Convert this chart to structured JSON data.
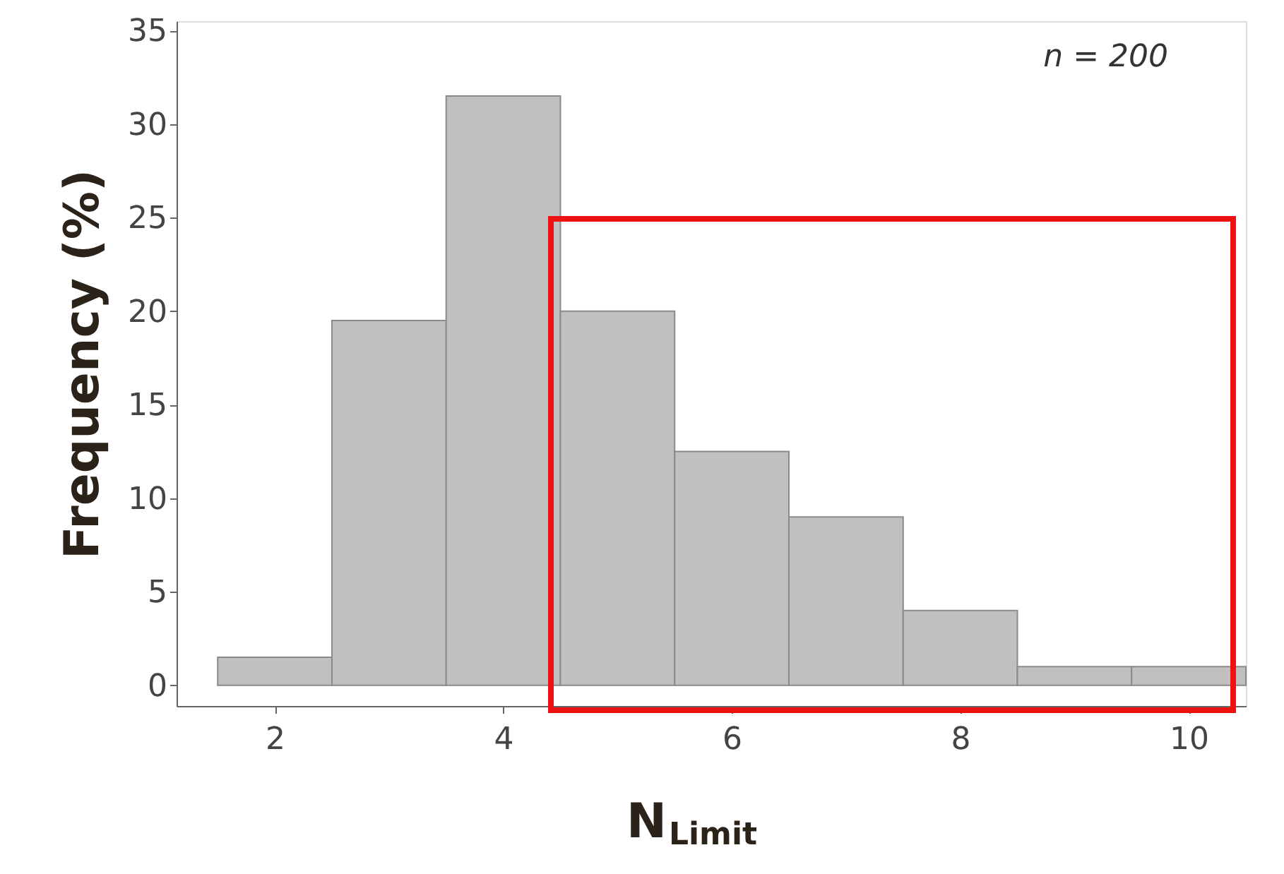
{
  "chart_data": {
    "type": "histogram",
    "bins": [
      1.5,
      2.5,
      3.5,
      4.5,
      5.5,
      6.5,
      7.5,
      8.5,
      9.5,
      10.5
    ],
    "values": [
      1.5,
      19.5,
      31.5,
      20,
      12.5,
      9,
      4,
      1,
      1
    ],
    "color": "#c0c0c0",
    "xlabel": "N$_{Limit}$",
    "ylabel": "Frequency (%)",
    "annotations": [
      "n = 200"
    ],
    "xlim": [
      1.14,
      10.5
    ],
    "ylim": [
      -1.1,
      35.5
    ],
    "xticks": [
      2,
      4,
      6,
      8,
      10
    ],
    "yticks": [
      0,
      5,
      10,
      15,
      20,
      25,
      30,
      35
    ],
    "grid": false
  }
}
